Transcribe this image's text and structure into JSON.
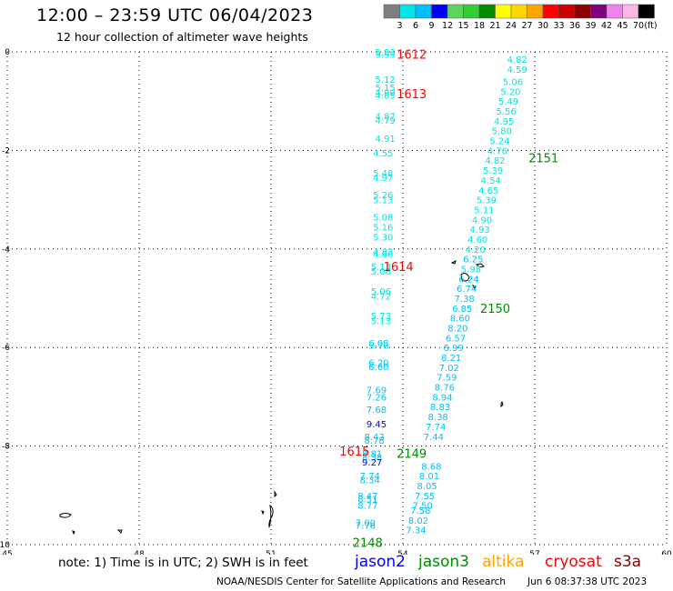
{
  "header": {
    "title": "12:00 – 23:59 UTC 06/04/2023",
    "subtitle": "12 hour collection of altimeter wave heights"
  },
  "colorbar": {
    "labels": [
      "3",
      "6",
      "9",
      "12",
      "15",
      "18",
      "21",
      "24",
      "27",
      "30",
      "33",
      "36",
      "39",
      "42",
      "45",
      "70"
    ],
    "unit": "(ft)",
    "colors": [
      "#7f7f7f",
      "#00e5e5",
      "#00bfff",
      "#0000ff",
      "#5fd35f",
      "#32cd32",
      "#008b00",
      "#ffff00",
      "#ffd700",
      "#ffa500",
      "#ff0000",
      "#cd0000",
      "#8b0000",
      "#800080",
      "#ee82ee",
      "#ffb6e6",
      "#000000"
    ]
  },
  "axes": {
    "x_ticks": [
      "45",
      "48",
      "51",
      "54",
      "57",
      "60"
    ],
    "y_ticks": [
      "0",
      "-2",
      "-4",
      "-6",
      "-8",
      "-10"
    ],
    "x_range": [
      45,
      60
    ],
    "y_range": [
      -10,
      0
    ]
  },
  "chart_data": {
    "type": "scatter",
    "x_label": "",
    "y_label": "",
    "color_scale_ft": [
      3,
      6,
      9,
      12,
      15,
      18,
      21,
      24,
      27,
      30,
      33,
      36,
      39,
      42,
      45,
      70
    ],
    "passes": [
      {
        "satellite": "cryosat",
        "color": "#00e5e5",
        "labels": [
          {
            "text": "1612",
            "lon": 54.2,
            "lat": -0.05
          },
          {
            "text": "1613",
            "lon": 54.2,
            "lat": -0.85
          },
          {
            "text": "1614",
            "lon": 53.9,
            "lat": -4.35
          },
          {
            "text": "1615",
            "lon": 52.9,
            "lat": -8.1
          }
        ],
        "points": [
          {
            "lon": 53.6,
            "lat": 0.0,
            "value": "5.83"
          },
          {
            "lon": 53.6,
            "lat": -0.05,
            "value": "5.55"
          },
          {
            "lon": 53.6,
            "lat": -0.55,
            "value": "5.12"
          },
          {
            "lon": 53.6,
            "lat": -0.72,
            "value": "5.15"
          },
          {
            "lon": 53.6,
            "lat": -0.82,
            "value": "4.99"
          },
          {
            "lon": 53.6,
            "lat": -0.88,
            "value": "4.85"
          },
          {
            "lon": 53.6,
            "lat": -1.3,
            "value": "4.87"
          },
          {
            "lon": 53.6,
            "lat": -1.38,
            "value": "4.79"
          },
          {
            "lon": 53.6,
            "lat": -1.75,
            "value": "4.91"
          },
          {
            "lon": 53.55,
            "lat": -2.05,
            "value": "4.55"
          },
          {
            "lon": 53.55,
            "lat": -2.45,
            "value": "5.48"
          },
          {
            "lon": 53.55,
            "lat": -2.55,
            "value": "4.97"
          },
          {
            "lon": 53.55,
            "lat": -2.9,
            "value": "5.26"
          },
          {
            "lon": 53.55,
            "lat": -3.0,
            "value": "5.13"
          },
          {
            "lon": 53.55,
            "lat": -3.35,
            "value": "5.08"
          },
          {
            "lon": 53.55,
            "lat": -3.55,
            "value": "5.16"
          },
          {
            "lon": 53.55,
            "lat": -3.75,
            "value": "5.30"
          },
          {
            "lon": 53.55,
            "lat": -4.05,
            "value": "4.83"
          },
          {
            "lon": 53.55,
            "lat": -4.1,
            "value": "4.66"
          },
          {
            "lon": 53.5,
            "lat": -4.35,
            "value": "5.13"
          },
          {
            "lon": 53.5,
            "lat": -4.45,
            "value": "5.08"
          },
          {
            "lon": 53.5,
            "lat": -4.85,
            "value": "5.06"
          },
          {
            "lon": 53.5,
            "lat": -4.95,
            "value": "4.72"
          },
          {
            "lon": 53.5,
            "lat": -5.35,
            "value": "5.73"
          },
          {
            "lon": 53.5,
            "lat": -5.45,
            "value": "5.13"
          },
          {
            "lon": 53.45,
            "lat": -5.9,
            "value": "6.08"
          },
          {
            "lon": 53.45,
            "lat": -5.95,
            "value": "5.76"
          },
          {
            "lon": 53.45,
            "lat": -6.3,
            "value": "6.20"
          },
          {
            "lon": 53.45,
            "lat": -6.38,
            "value": "6.60"
          },
          {
            "lon": 53.4,
            "lat": -6.85,
            "value": "7.69"
          },
          {
            "lon": 53.4,
            "lat": -7.0,
            "value": "7.26"
          },
          {
            "lon": 53.4,
            "lat": -7.25,
            "value": "7.68"
          },
          {
            "lon": 53.4,
            "lat": -7.55,
            "value": "9.45"
          },
          {
            "lon": 53.35,
            "lat": -7.8,
            "value": "8.43"
          },
          {
            "lon": 53.35,
            "lat": -7.88,
            "value": "8.78"
          },
          {
            "lon": 53.3,
            "lat": -8.15,
            "value": "8.81"
          },
          {
            "lon": 53.3,
            "lat": -8.22,
            "value": "8.38"
          },
          {
            "lon": 53.3,
            "lat": -8.32,
            "value": "9.27"
          },
          {
            "lon": 53.25,
            "lat": -8.6,
            "value": "7.74"
          },
          {
            "lon": 53.25,
            "lat": -8.68,
            "value": "8.34"
          },
          {
            "lon": 53.2,
            "lat": -9.0,
            "value": "8.47"
          },
          {
            "lon": 53.2,
            "lat": -9.07,
            "value": "8.51"
          },
          {
            "lon": 53.2,
            "lat": -9.2,
            "value": "8.77"
          },
          {
            "lon": 53.15,
            "lat": -9.55,
            "value": "7.00"
          },
          {
            "lon": 53.15,
            "lat": -9.6,
            "value": "7.76"
          }
        ]
      },
      {
        "satellite": "jason3",
        "color": "#00e5e5",
        "labels": [
          {
            "text": "2151",
            "lon": 57.2,
            "lat": -2.15
          },
          {
            "text": "2150",
            "lon": 56.1,
            "lat": -5.2
          },
          {
            "text": "2149",
            "lon": 54.2,
            "lat": -8.15
          },
          {
            "text": "2148",
            "lon": 53.2,
            "lat": -9.95
          }
        ],
        "points": [
          {
            "lon": 56.6,
            "lat": -0.15,
            "value": "4.82"
          },
          {
            "lon": 56.6,
            "lat": -0.35,
            "value": "4.59"
          },
          {
            "lon": 56.5,
            "lat": -0.6,
            "value": "5.06"
          },
          {
            "lon": 56.45,
            "lat": -0.8,
            "value": "5.20"
          },
          {
            "lon": 56.4,
            "lat": -1.0,
            "value": "5.49"
          },
          {
            "lon": 56.35,
            "lat": -1.2,
            "value": "5.56"
          },
          {
            "lon": 56.3,
            "lat": -1.4,
            "value": "4.95"
          },
          {
            "lon": 56.25,
            "lat": -1.6,
            "value": "5.80"
          },
          {
            "lon": 56.2,
            "lat": -1.8,
            "value": "5.24"
          },
          {
            "lon": 56.15,
            "lat": -2.0,
            "value": "4.76"
          },
          {
            "lon": 56.1,
            "lat": -2.2,
            "value": "4.82"
          },
          {
            "lon": 56.05,
            "lat": -2.4,
            "value": "5.39"
          },
          {
            "lon": 56.0,
            "lat": -2.6,
            "value": "4.54"
          },
          {
            "lon": 55.95,
            "lat": -2.8,
            "value": "4.65"
          },
          {
            "lon": 55.9,
            "lat": -3.0,
            "value": "5.39"
          },
          {
            "lon": 55.85,
            "lat": -3.2,
            "value": "5.11"
          },
          {
            "lon": 55.8,
            "lat": -3.4,
            "value": "4.90"
          },
          {
            "lon": 55.75,
            "lat": -3.6,
            "value": "4.93"
          },
          {
            "lon": 55.7,
            "lat": -3.8,
            "value": "4.60"
          },
          {
            "lon": 55.65,
            "lat": -4.0,
            "value": "4.20"
          },
          {
            "lon": 55.6,
            "lat": -4.2,
            "value": "6.25"
          },
          {
            "lon": 55.55,
            "lat": -4.4,
            "value": "5.98"
          },
          {
            "lon": 55.5,
            "lat": -4.6,
            "value": "6.24"
          },
          {
            "lon": 55.45,
            "lat": -4.8,
            "value": "6.74"
          },
          {
            "lon": 55.4,
            "lat": -5.0,
            "value": "7.38"
          },
          {
            "lon": 55.35,
            "lat": -5.2,
            "value": "6.85"
          },
          {
            "lon": 55.3,
            "lat": -5.4,
            "value": "8.60"
          },
          {
            "lon": 55.25,
            "lat": -5.6,
            "value": "8.20"
          },
          {
            "lon": 55.2,
            "lat": -5.8,
            "value": "6.57"
          },
          {
            "lon": 55.15,
            "lat": -6.0,
            "value": "6.99"
          },
          {
            "lon": 55.1,
            "lat": -6.2,
            "value": "8.21"
          },
          {
            "lon": 55.05,
            "lat": -6.4,
            "value": "7.02"
          },
          {
            "lon": 55.0,
            "lat": -6.6,
            "value": "7.59"
          },
          {
            "lon": 54.95,
            "lat": -6.8,
            "value": "8.76"
          },
          {
            "lon": 54.9,
            "lat": -7.0,
            "value": "8.94"
          },
          {
            "lon": 54.85,
            "lat": -7.2,
            "value": "8.83"
          },
          {
            "lon": 54.8,
            "lat": -7.4,
            "value": "8.38"
          },
          {
            "lon": 54.75,
            "lat": -7.6,
            "value": "7.74"
          },
          {
            "lon": 54.7,
            "lat": -7.8,
            "value": "7.44"
          },
          {
            "lon": 54.65,
            "lat": -8.4,
            "value": "8.68"
          },
          {
            "lon": 54.6,
            "lat": -8.6,
            "value": "8.01"
          },
          {
            "lon": 54.55,
            "lat": -8.8,
            "value": "8.05"
          },
          {
            "lon": 54.5,
            "lat": -9.0,
            "value": "7.55"
          },
          {
            "lon": 54.45,
            "lat": -9.2,
            "value": "7.50"
          },
          {
            "lon": 54.4,
            "lat": -9.3,
            "value": "7.58"
          },
          {
            "lon": 54.35,
            "lat": -9.5,
            "value": "8.02"
          },
          {
            "lon": 54.3,
            "lat": -9.7,
            "value": "7.34"
          }
        ]
      }
    ]
  },
  "legend": {
    "note": "note: 1) Time is in UTC; 2) SWH is in feet",
    "satellites": [
      {
        "name": "jason2",
        "color": "#0000ff"
      },
      {
        "name": "jason3",
        "color": "#008b00"
      },
      {
        "name": "altika",
        "color": "#ffa500"
      },
      {
        "name": "cryosat",
        "color": "#ff0000"
      },
      {
        "name": "s3a",
        "color": "#8b0000"
      }
    ]
  },
  "footer": {
    "credit": "NOAA/NESDIS Center for Satellite Applications and Research",
    "timestamp": "Jun  6 08:37:38 UTC 2023"
  }
}
